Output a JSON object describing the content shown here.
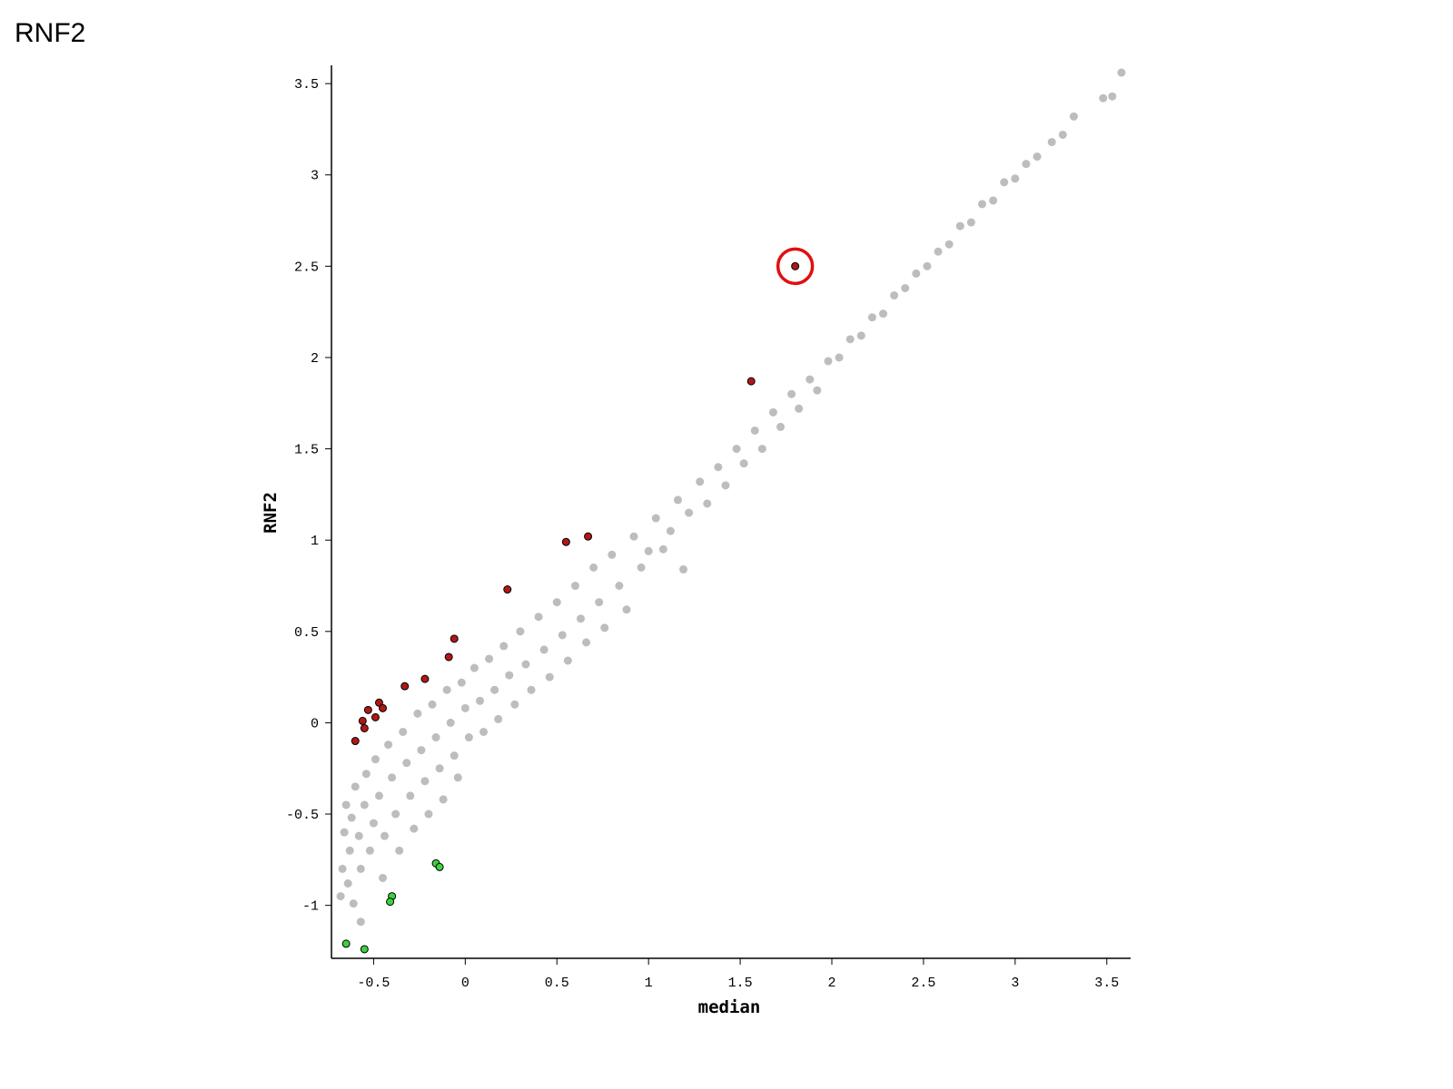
{
  "chart_data": {
    "type": "scatter",
    "title": "RNF2",
    "x_label": "median",
    "y_label": "RNF2",
    "xlim": [
      -0.73,
      3.63
    ],
    "ylim": [
      -1.29,
      3.6
    ],
    "xticks": [
      -0.5,
      0,
      0.5,
      1,
      1.5,
      2,
      2.5,
      3,
      3.5
    ],
    "yticks": [
      -1,
      -0.5,
      0,
      0.5,
      1,
      1.5,
      2,
      2.5,
      3,
      3.5
    ],
    "grid": false,
    "series": [
      {
        "color": "#bdbdbd",
        "x": [
          -0.68,
          -0.67,
          -0.66,
          -0.65,
          -0.64,
          -0.63,
          -0.62,
          -0.61,
          -0.6,
          -0.58,
          -0.57,
          -0.55,
          -0.54,
          -0.52,
          -0.5,
          -0.49,
          -0.47,
          -0.45,
          -0.44,
          -0.42,
          -0.4,
          -0.38,
          -0.36,
          -0.34,
          -0.32,
          -0.3,
          -0.28,
          -0.26,
          -0.24,
          -0.22,
          -0.2,
          -0.18,
          -0.16,
          -0.14,
          -0.12,
          -0.1,
          -0.08,
          -0.06,
          -0.04,
          -0.02,
          0,
          0.02,
          0.05,
          0.08,
          0.1,
          0.13,
          0.16,
          0.18,
          0.21,
          0.24,
          0.27,
          0.3,
          0.33,
          0.36,
          0.4,
          0.43,
          0.46,
          0.5,
          0.53,
          0.56,
          0.6,
          0.63,
          0.66,
          0.7,
          0.73,
          0.76,
          0.8,
          0.84,
          0.88,
          0.92,
          0.96,
          1,
          1.04,
          1.08,
          1.12,
          1.16,
          1.19,
          1.22,
          1.28,
          1.32,
          1.38,
          1.42,
          1.48,
          1.52,
          1.58,
          1.62,
          1.68,
          1.72,
          1.78,
          1.82,
          1.88,
          1.92,
          1.98,
          2.04,
          2.1,
          2.16,
          2.22,
          2.28,
          2.34,
          2.4,
          2.46,
          2.52,
          2.58,
          2.64,
          2.7,
          2.76,
          2.82,
          2.88,
          2.94,
          3,
          3.06,
          3.12,
          3.2,
          3.26,
          3.32,
          3.48,
          3.53,
          3.58,
          -0.57
        ],
        "values": [
          -0.95,
          -0.8,
          -0.6,
          -0.45,
          -0.88,
          -0.7,
          -0.52,
          -0.99,
          -0.35,
          -0.62,
          -0.8,
          -0.45,
          -0.28,
          -0.7,
          -0.55,
          -0.2,
          -0.4,
          -0.85,
          -0.62,
          -0.12,
          -0.3,
          -0.5,
          -0.7,
          -0.05,
          -0.22,
          -0.4,
          -0.58,
          0.05,
          -0.15,
          -0.32,
          -0.5,
          0.1,
          -0.08,
          -0.25,
          -0.42,
          0.18,
          0,
          -0.18,
          -0.3,
          0.22,
          0.08,
          -0.08,
          0.3,
          0.12,
          -0.05,
          0.35,
          0.18,
          0.02,
          0.42,
          0.26,
          0.1,
          0.5,
          0.32,
          0.18,
          0.58,
          0.4,
          0.25,
          0.66,
          0.48,
          0.34,
          0.75,
          0.57,
          0.44,
          0.85,
          0.66,
          0.52,
          0.92,
          0.75,
          0.62,
          1.02,
          0.85,
          0.94,
          1.12,
          0.95,
          1.05,
          1.22,
          0.84,
          1.15,
          1.32,
          1.2,
          1.4,
          1.3,
          1.5,
          1.42,
          1.6,
          1.5,
          1.7,
          1.62,
          1.8,
          1.72,
          1.88,
          1.82,
          1.98,
          2,
          2.1,
          2.12,
          2.22,
          2.24,
          2.34,
          2.38,
          2.46,
          2.5,
          2.58,
          2.62,
          2.72,
          2.74,
          2.84,
          2.86,
          2.96,
          2.98,
          3.06,
          3.1,
          3.18,
          3.22,
          3.32,
          3.42,
          3.43,
          3.56,
          -1.09
        ]
      },
      {
        "color": "#b01818",
        "x": [
          1.8,
          1.56,
          0.55,
          0.67,
          0.23,
          -0.06,
          -0.09,
          -0.22,
          -0.33,
          -0.47,
          -0.45,
          -0.53,
          -0.49,
          -0.56,
          -0.55,
          -0.6
        ],
        "values": [
          2.5,
          1.87,
          0.99,
          1.02,
          0.73,
          0.46,
          0.36,
          0.24,
          0.2,
          0.11,
          0.08,
          0.07,
          0.03,
          0.01,
          -0.03,
          -0.1
        ]
      },
      {
        "color": "#3cd23c",
        "x": [
          -0.16,
          -0.14,
          -0.4,
          -0.41,
          -0.65,
          -0.55
        ],
        "values": [
          -0.77,
          -0.79,
          -0.95,
          -0.98,
          -1.21,
          -1.24
        ]
      }
    ]
  }
}
